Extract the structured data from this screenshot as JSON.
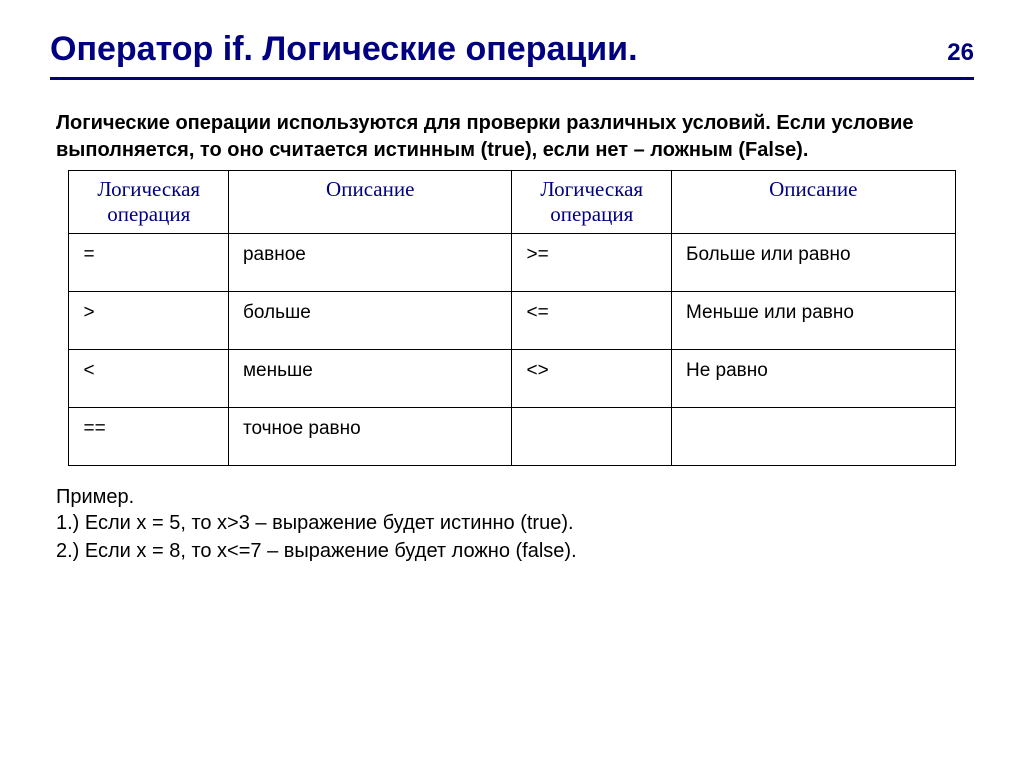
{
  "page_number": "26",
  "title": "Оператор if. Логические операции.",
  "intro": "Логические операции используются для проверки различных условий. Если условие выполняется, то оно считается истинным (true), если нет – ложным (False).",
  "table": {
    "headers": {
      "op1": "Логическая операция",
      "desc1": "Описание",
      "op2": "Логическая операция",
      "desc2": "Описание"
    },
    "rows": [
      {
        "op1": "=",
        "desc1": "равное",
        "op2": ">=",
        "desc2": "Больше или равно"
      },
      {
        "op1": ">",
        "desc1": "больше",
        "op2": "<=",
        "desc2": "Меньше или равно"
      },
      {
        "op1": "<",
        "desc1": "меньше",
        "op2": "<>",
        "desc2": "Не равно"
      },
      {
        "op1": "==",
        "desc1": "точное равно",
        "op2": "",
        "desc2": ""
      }
    ]
  },
  "example": {
    "title": "Пример.",
    "line1": "1.) Если x = 5, то x>3 – выражение будет истинно (true).",
    "line2": "2.) Если x = 8, то x<=7 – выражение будет ложно (false)."
  },
  "colors": {
    "title_color": "#000080",
    "divider_color": "#000080",
    "header_text_color": "#000080",
    "body_text_color": "#000000",
    "background": "#ffffff",
    "border_color": "#000000"
  }
}
